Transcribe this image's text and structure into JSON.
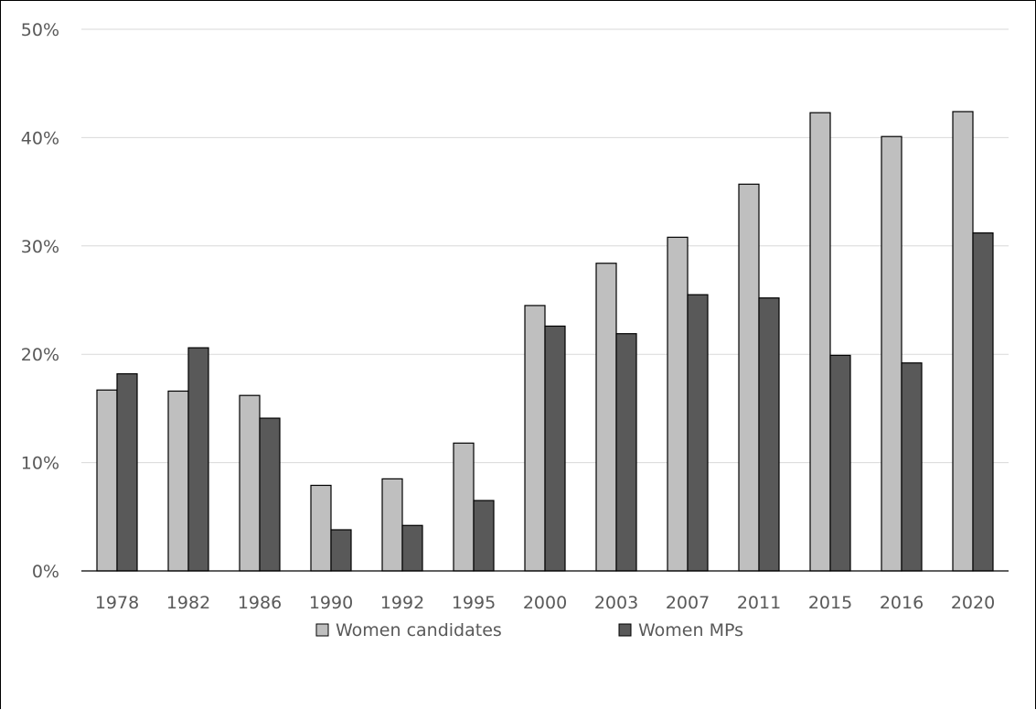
{
  "chart_data": {
    "type": "bar",
    "categories": [
      "1978",
      "1982",
      "1986",
      "1990",
      "1992",
      "1995",
      "2000",
      "2003",
      "2007",
      "2011",
      "2015",
      "2016",
      "2020"
    ],
    "series": [
      {
        "name": "Women candidates",
        "color": "#bfbfbf",
        "values": [
          16.7,
          16.6,
          16.2,
          7.9,
          8.5,
          11.8,
          24.5,
          28.4,
          30.8,
          35.7,
          42.3,
          40.1,
          42.4
        ]
      },
      {
        "name": "Women MPs",
        "color": "#595959",
        "values": [
          18.2,
          20.6,
          14.1,
          3.8,
          4.2,
          6.5,
          22.6,
          21.9,
          25.5,
          25.2,
          19.9,
          19.2,
          31.2
        ]
      }
    ],
    "ylim": [
      0,
      50
    ],
    "yticks": [
      0,
      10,
      20,
      30,
      40,
      50
    ],
    "ytick_labels": [
      "0%",
      "10%",
      "20%",
      "30%",
      "40%",
      "50%"
    ],
    "grid": true,
    "legend_position": "bottom",
    "title": "",
    "xlabel": "",
    "ylabel": ""
  }
}
